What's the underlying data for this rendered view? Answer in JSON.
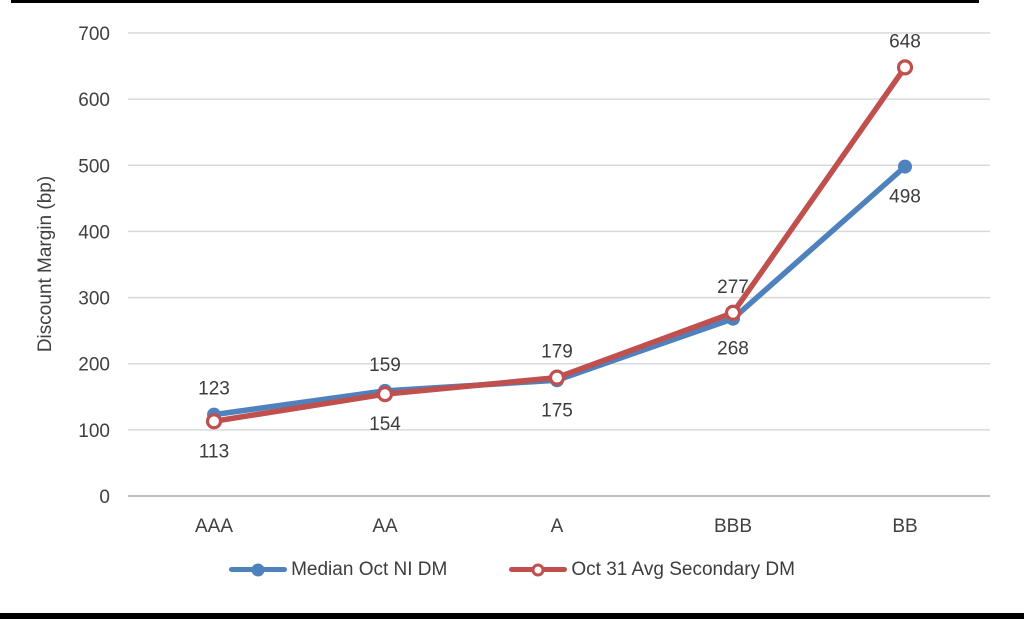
{
  "chart_data": {
    "type": "line",
    "title": "",
    "categories": [
      "AAA",
      "AA",
      "A",
      "BBB",
      "BB"
    ],
    "xlabel": "",
    "ylabel": "Discount Margin (bp)",
    "ylim": [
      0,
      700
    ],
    "ytick_step": 100,
    "yticks": [
      0,
      100,
      200,
      300,
      400,
      500,
      600,
      700
    ],
    "grid": true,
    "gridline_color": "#d9d9d9",
    "baseline_color": "#bfbfbf",
    "legend_position": "bottom",
    "series": [
      {
        "name": "Median Oct NI DM",
        "color": "#4F81BD",
        "marker": "filled-circle",
        "values": [
          123,
          159,
          175,
          268,
          498
        ],
        "label_positions": [
          "above",
          "above",
          "below",
          "below",
          "below"
        ]
      },
      {
        "name": "Oct 31 Avg Secondary DM",
        "color": "#C0504D",
        "marker": "open-circle",
        "values": [
          113,
          154,
          179,
          277,
          648
        ],
        "label_positions": [
          "below",
          "below",
          "above",
          "above",
          "above"
        ]
      }
    ]
  }
}
